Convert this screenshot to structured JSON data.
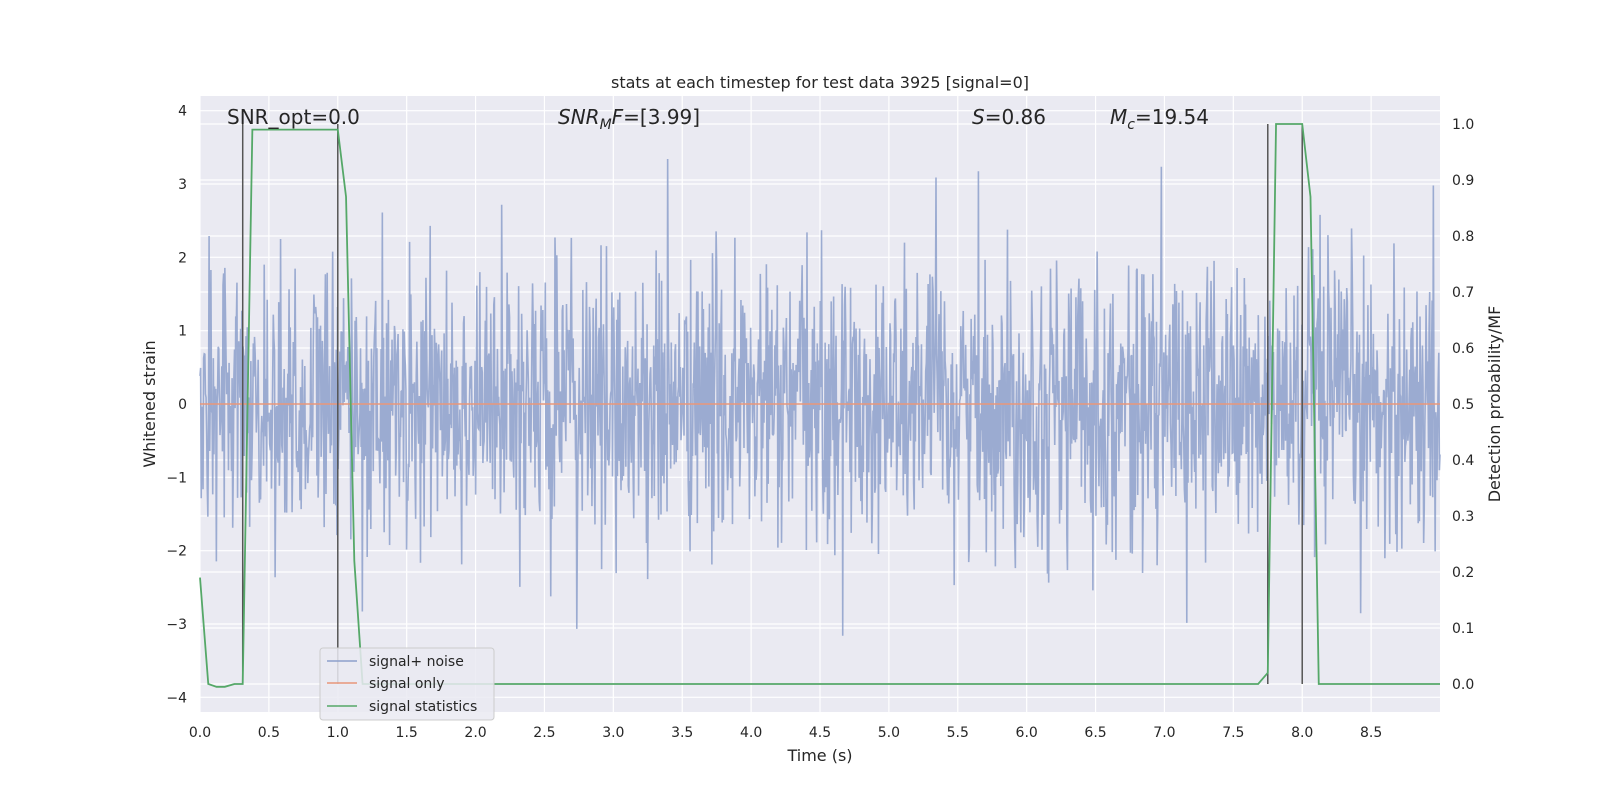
{
  "chart_data": {
    "type": "line",
    "title": "stats at each timestep for test data 3925 [signal=0]",
    "xlabel": "Time (s)",
    "ylabel": "Whitened strain",
    "y2label": "Detection probability/MF",
    "xlim": [
      0.0,
      9.0
    ],
    "ylim": [
      -4.2,
      4.2
    ],
    "y2lim": [
      -0.05,
      1.05
    ],
    "x_ticks": [
      0.0,
      0.5,
      1.0,
      1.5,
      2.0,
      2.5,
      3.0,
      3.5,
      4.0,
      4.5,
      5.0,
      5.5,
      6.0,
      6.5,
      7.0,
      7.5,
      8.0,
      8.5
    ],
    "x_tick_labels": [
      "0.0",
      "0.5",
      "1.0",
      "1.5",
      "2.0",
      "2.5",
      "3.0",
      "3.5",
      "4.0",
      "4.5",
      "5.0",
      "5.5",
      "6.0",
      "6.5",
      "7.0",
      "7.5",
      "8.0",
      "8.5"
    ],
    "y_ticks": [
      -4,
      -3,
      -2,
      -1,
      0,
      1,
      2,
      3,
      4
    ],
    "y_tick_labels": [
      "−4",
      "−3",
      "−2",
      "−1",
      "0",
      "1",
      "2",
      "3",
      "4"
    ],
    "y2_ticks": [
      0.0,
      0.1,
      0.2,
      0.3,
      0.4,
      0.5,
      0.6,
      0.7,
      0.8,
      0.9,
      1.0
    ],
    "y2_tick_labels": [
      "0.0",
      "0.1",
      "0.2",
      "0.3",
      "0.4",
      "0.5",
      "0.6",
      "0.7",
      "0.8",
      "0.9",
      "1.0"
    ],
    "grid": true,
    "legend_position": "lower-left",
    "annotations": {
      "snr_opt": "SNR_opt=0.0",
      "snr_mf_label": "SNR",
      "snr_mf_sub": "M",
      "snr_mf_tail": "F",
      "snr_mf_value": "=[3.99]",
      "s_label": "S",
      "s_value": "=0.86",
      "mc_label": "M",
      "mc_sub": "c",
      "mc_value": "=19.54"
    },
    "vertical_markers": [
      0.31,
      1.0,
      7.75,
      8.0
    ],
    "series": [
      {
        "name": "signal+ noise",
        "color": "#8da0cb",
        "axis": "left",
        "kind": "noise",
        "amplitude_std": 0.95,
        "x_range": [
          0.0,
          9.0
        ],
        "sample_count": 2048
      },
      {
        "name": "signal only",
        "color": "#e8967a",
        "axis": "left",
        "x": [
          0.0,
          9.0
        ],
        "y": [
          0.0,
          0.0
        ]
      },
      {
        "name": "signal statistics",
        "color": "#55a868",
        "axis": "right",
        "x": [
          0.0,
          0.06,
          0.12,
          0.18,
          0.25,
          0.31,
          0.38,
          0.5,
          0.75,
          1.0,
          1.06,
          1.12,
          1.18,
          1.25,
          2.0,
          3.0,
          4.0,
          5.0,
          6.0,
          7.0,
          7.68,
          7.75,
          7.81,
          7.94,
          8.0,
          8.06,
          8.12,
          8.19,
          9.0
        ],
        "y": [
          0.19,
          0.0,
          -0.005,
          -0.005,
          0.0,
          0.0,
          0.99,
          0.99,
          0.99,
          0.99,
          0.87,
          0.22,
          0.0,
          0.0,
          0.0,
          0.0,
          0.0,
          0.0,
          0.0,
          0.0,
          0.0,
          0.02,
          1.0,
          1.0,
          1.0,
          0.87,
          0.0,
          0.0,
          0.0
        ]
      }
    ]
  }
}
